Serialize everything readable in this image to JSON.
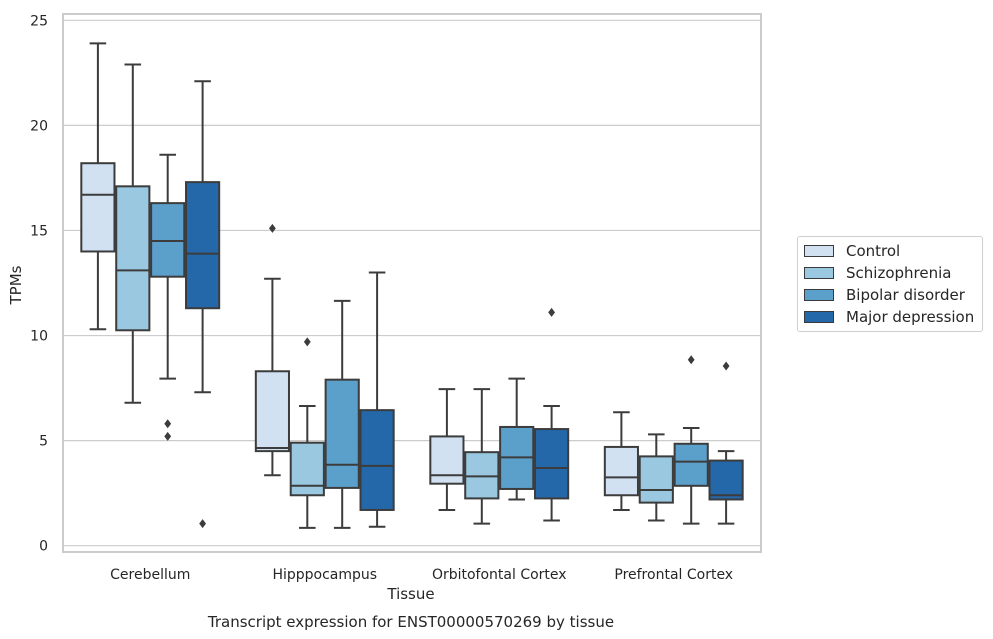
{
  "chart_data": {
    "type": "box",
    "title": "Transcript expression for ENST00000570269 by tissue",
    "xlabel": "Tissue",
    "ylabel": "TPMs",
    "ylim": [
      -0.3,
      25.3
    ],
    "yticks": [
      0,
      5,
      10,
      15,
      20,
      25
    ],
    "grid": "horizontal",
    "legend_position": "right",
    "categories": [
      "Cerebellum",
      "Hipppocampus",
      "Orbitofontal Cortex",
      "Prefrontal Cortex"
    ],
    "series": [
      {
        "name": "Control",
        "color": "#d1e1f1",
        "boxes": [
          {
            "whislo": 10.3,
            "q1": 14.0,
            "med": 16.7,
            "q3": 18.2,
            "whishi": 23.9,
            "fliers": []
          },
          {
            "whislo": 3.35,
            "q1": 4.5,
            "med": 4.65,
            "q3": 8.3,
            "whishi": 12.7,
            "fliers": [
              15.1
            ]
          },
          {
            "whislo": 1.7,
            "q1": 2.95,
            "med": 3.35,
            "q3": 5.2,
            "whishi": 7.45,
            "fliers": []
          },
          {
            "whislo": 1.7,
            "q1": 2.4,
            "med": 3.25,
            "q3": 4.7,
            "whishi": 6.35,
            "fliers": []
          }
        ]
      },
      {
        "name": "Schizophrenia",
        "color": "#9ac8e0",
        "boxes": [
          {
            "whislo": 6.8,
            "q1": 10.25,
            "med": 13.1,
            "q3": 17.1,
            "whishi": 22.9,
            "fliers": []
          },
          {
            "whislo": 0.85,
            "q1": 2.4,
            "med": 2.85,
            "q3": 4.9,
            "whishi": 6.65,
            "fliers": [
              9.7
            ]
          },
          {
            "whislo": 1.05,
            "q1": 2.25,
            "med": 3.3,
            "q3": 4.45,
            "whishi": 7.45,
            "fliers": []
          },
          {
            "whislo": 1.2,
            "q1": 2.05,
            "med": 2.65,
            "q3": 4.25,
            "whishi": 5.3,
            "fliers": []
          }
        ]
      },
      {
        "name": "Bipolar disorder",
        "color": "#5b9fcb",
        "boxes": [
          {
            "whislo": 7.95,
            "q1": 12.8,
            "med": 14.5,
            "q3": 16.3,
            "whishi": 18.6,
            "fliers": [
              5.8,
              5.2
            ]
          },
          {
            "whislo": 0.85,
            "q1": 2.75,
            "med": 3.85,
            "q3": 7.9,
            "whishi": 11.65,
            "fliers": []
          },
          {
            "whislo": 2.2,
            "q1": 2.7,
            "med": 4.2,
            "q3": 5.65,
            "whishi": 7.95,
            "fliers": []
          },
          {
            "whislo": 1.05,
            "q1": 2.85,
            "med": 4.0,
            "q3": 4.85,
            "whishi": 5.6,
            "fliers": [
              8.85
            ]
          }
        ]
      },
      {
        "name": "Major depression",
        "color": "#2468a9",
        "boxes": [
          {
            "whislo": 7.3,
            "q1": 11.3,
            "med": 13.9,
            "q3": 17.3,
            "whishi": 22.1,
            "fliers": [
              1.05
            ]
          },
          {
            "whislo": 0.9,
            "q1": 1.7,
            "med": 3.8,
            "q3": 6.45,
            "whishi": 13.0,
            "fliers": []
          },
          {
            "whislo": 1.2,
            "q1": 2.25,
            "med": 3.7,
            "q3": 5.55,
            "whishi": 6.65,
            "fliers": [
              11.1
            ]
          },
          {
            "whislo": 1.05,
            "q1": 2.2,
            "med": 2.4,
            "q3": 4.05,
            "whishi": 4.5,
            "fliers": [
              8.55
            ]
          }
        ]
      }
    ]
  }
}
